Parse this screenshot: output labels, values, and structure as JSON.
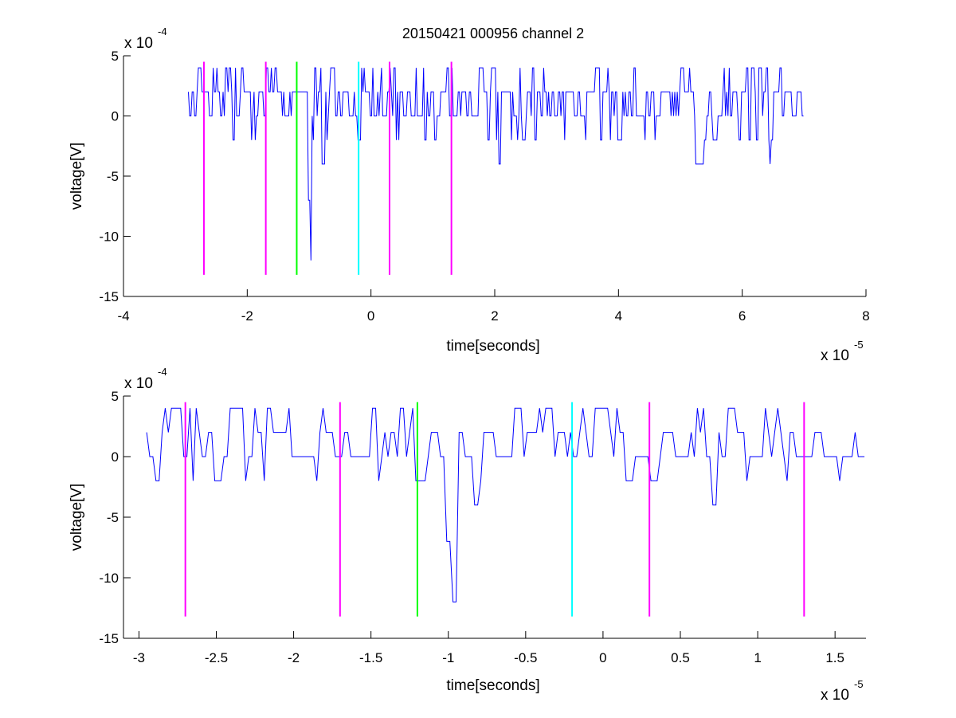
{
  "figure": {
    "title": "20150421 000956 channel 2"
  },
  "colors": {
    "signal": "#0000ff",
    "magenta": "#ff00ff",
    "green": "#00ff00",
    "cyan": "#00ffff",
    "axis": "#000000"
  },
  "chart_data": [
    {
      "type": "line",
      "title": "20150421 000956 channel 2",
      "xlabel": "time[seconds]",
      "ylabel": "voltage[V]",
      "x_exponent_label": "x 10",
      "x_exponent": "-5",
      "y_exponent_label": "x 10",
      "y_exponent": "-4",
      "xlim": [
        -4,
        8
      ],
      "ylim": [
        -15,
        5
      ],
      "xticks": [
        -4,
        -2,
        0,
        2,
        4,
        6,
        8
      ],
      "xtick_labels": [
        "-4",
        "-2",
        "0",
        "2",
        "4",
        "6",
        "8"
      ],
      "yticks": [
        5,
        0,
        -5,
        -10,
        -15
      ],
      "ytick_labels": [
        "5",
        "0",
        "-5",
        "-10",
        "-15"
      ],
      "grid": false,
      "legend": "none",
      "signal": {
        "x_start": -2.95,
        "x_end": 7.0,
        "sample_step": 0.02,
        "baseline_levels": [
          0,
          2
        ],
        "typical_range": [
          -2,
          4
        ],
        "notable_dips": [
          {
            "x": -0.98,
            "y": -12
          },
          {
            "x": -1.0,
            "y": -7
          },
          {
            "x": -0.78,
            "y": -4
          },
          {
            "x": 2.08,
            "y": -4
          },
          {
            "x": 5.25,
            "y": -4
          },
          {
            "x": 6.45,
            "y": -4
          }
        ]
      },
      "markers": [
        {
          "x": -2.7,
          "y_top": 4.5,
          "y_bottom": -13.2,
          "color": "magenta"
        },
        {
          "x": -1.7,
          "y_top": 4.5,
          "y_bottom": -13.2,
          "color": "magenta"
        },
        {
          "x": -1.2,
          "y_top": 4.5,
          "y_bottom": -13.2,
          "color": "green"
        },
        {
          "x": -0.2,
          "y_top": 4.5,
          "y_bottom": -13.2,
          "color": "cyan"
        },
        {
          "x": 0.3,
          "y_top": 4.5,
          "y_bottom": -13.2,
          "color": "magenta"
        },
        {
          "x": 1.3,
          "y_top": 4.5,
          "y_bottom": -13.2,
          "color": "magenta"
        }
      ]
    },
    {
      "type": "line",
      "title": "",
      "xlabel": "time[seconds]",
      "ylabel": "voltage[V]",
      "x_exponent_label": "x 10",
      "x_exponent": "-5",
      "y_exponent_label": "x 10",
      "y_exponent": "-4",
      "xlim": [
        -3.1,
        1.7
      ],
      "ylim": [
        -15,
        5
      ],
      "xticks": [
        -3,
        -2.5,
        -2,
        -1.5,
        -1,
        -0.5,
        0,
        0.5,
        1,
        1.5
      ],
      "xtick_labels": [
        "-3",
        "-2.5",
        "-2",
        "-1.5",
        "-1",
        "-0.5",
        "0",
        "0.5",
        "1",
        "1.5"
      ],
      "yticks": [
        5,
        0,
        -5,
        -10,
        -15
      ],
      "ytick_labels": [
        "5",
        "0",
        "-5",
        "-10",
        "-15"
      ],
      "grid": false,
      "legend": "none",
      "signal": {
        "x_start": -2.95,
        "x_end": 1.7,
        "sample_step": 0.02,
        "baseline_levels": [
          0,
          2
        ],
        "typical_range": [
          -2,
          4
        ],
        "notable_dips": [
          {
            "x": -0.98,
            "y": -12
          },
          {
            "x": -1.0,
            "y": -7
          },
          {
            "x": -0.82,
            "y": -4
          },
          {
            "x": 0.72,
            "y": -4
          },
          {
            "x": -2.88,
            "y": -2
          },
          {
            "x": -1.45,
            "y": -2
          }
        ]
      },
      "markers": [
        {
          "x": -2.7,
          "y_top": 4.5,
          "y_bottom": -13.2,
          "color": "magenta"
        },
        {
          "x": -1.7,
          "y_top": 4.5,
          "y_bottom": -13.2,
          "color": "magenta"
        },
        {
          "x": -1.2,
          "y_top": 4.5,
          "y_bottom": -13.2,
          "color": "green"
        },
        {
          "x": -0.2,
          "y_top": 4.5,
          "y_bottom": -13.2,
          "color": "cyan"
        },
        {
          "x": 0.3,
          "y_top": 4.5,
          "y_bottom": -13.2,
          "color": "magenta"
        },
        {
          "x": 1.3,
          "y_top": 4.5,
          "y_bottom": -13.2,
          "color": "magenta"
        }
      ]
    }
  ]
}
